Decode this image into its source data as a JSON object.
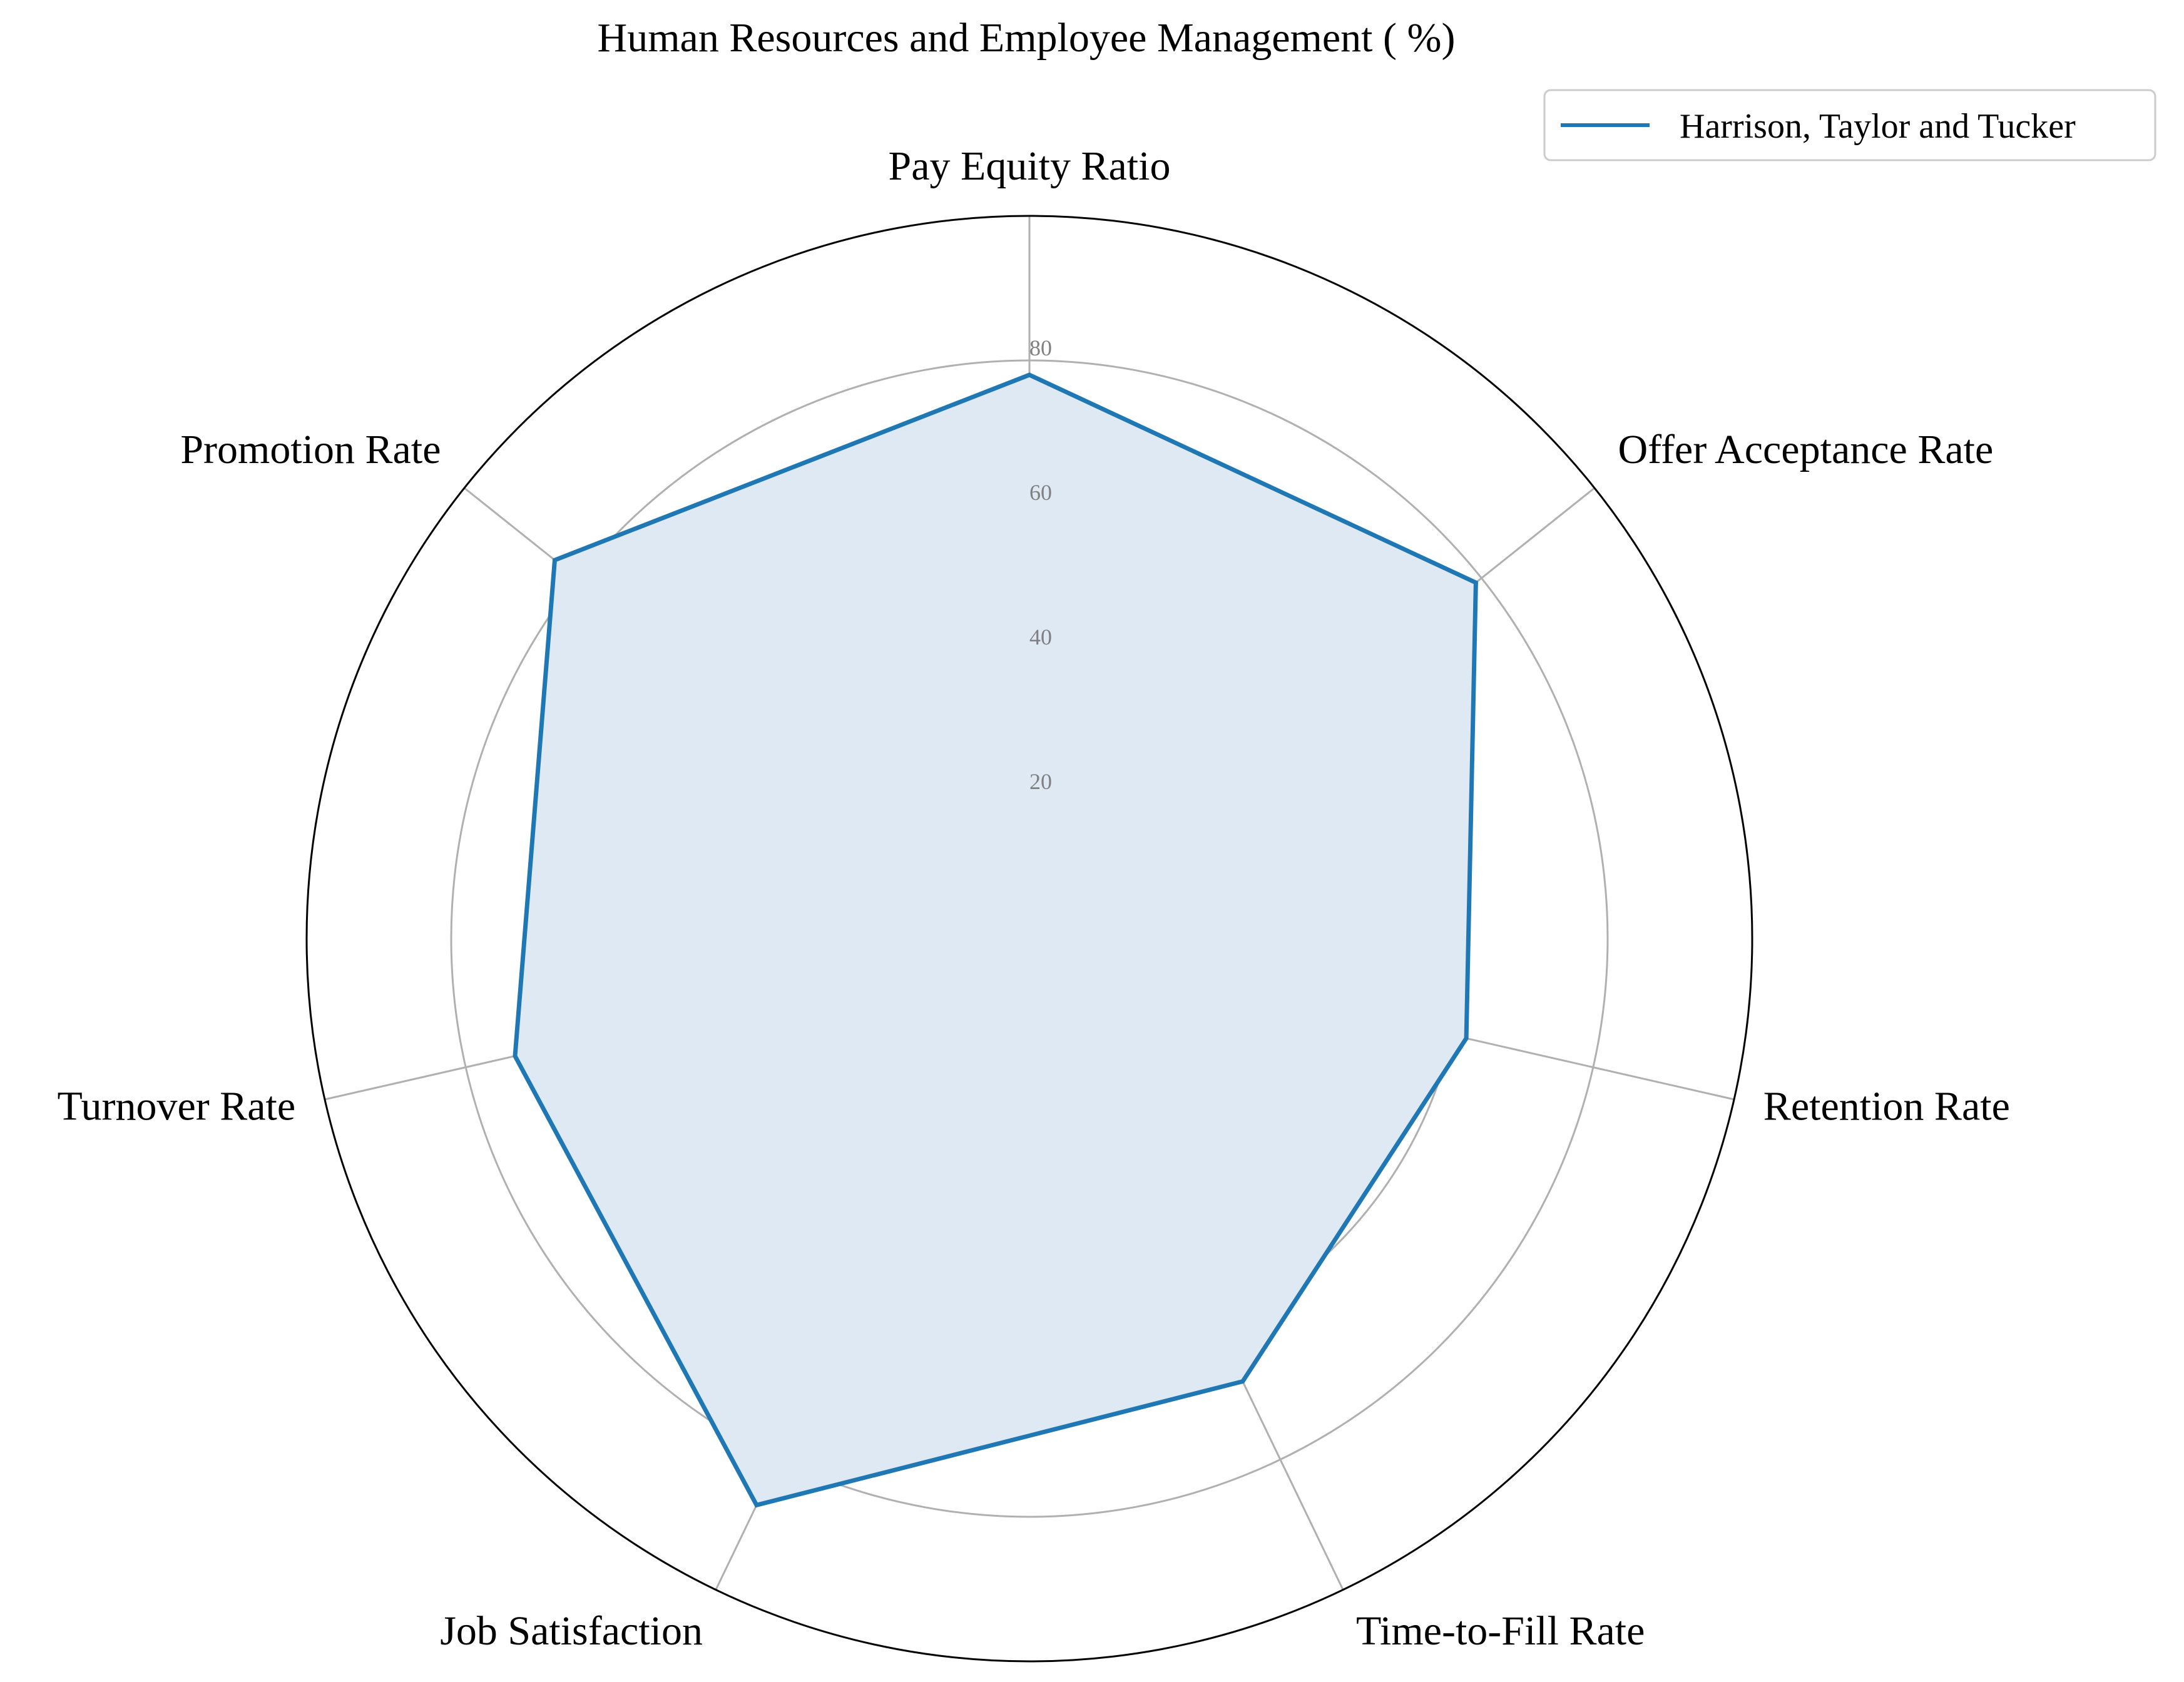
{
  "chart_data": {
    "type": "radar",
    "title": "Human Resources and Employee Management ( %)",
    "categories": [
      "Pay Equity Ratio",
      "Offer Acceptance Rate",
      "Retention Rate",
      "Time-to-Fill Rate",
      "Job Satisfaction",
      "Turnover Rate",
      "Promotion Rate"
    ],
    "series": [
      {
        "name": "Harrison, Taylor and Tucker",
        "values": [
          78,
          79,
          62,
          68,
          87,
          73,
          84
        ],
        "color": "#1f77b4"
      }
    ],
    "r_ticks": [
      "20",
      "40",
      "60",
      "80"
    ],
    "rlim": [
      0,
      100
    ],
    "grid": true,
    "legend": "top-right",
    "colors": {
      "line": "#1f77b4",
      "fill": "#dee9f4",
      "grid": "#b0b0b0",
      "tick_label": "#808080",
      "outer_ring": "#000000"
    }
  }
}
